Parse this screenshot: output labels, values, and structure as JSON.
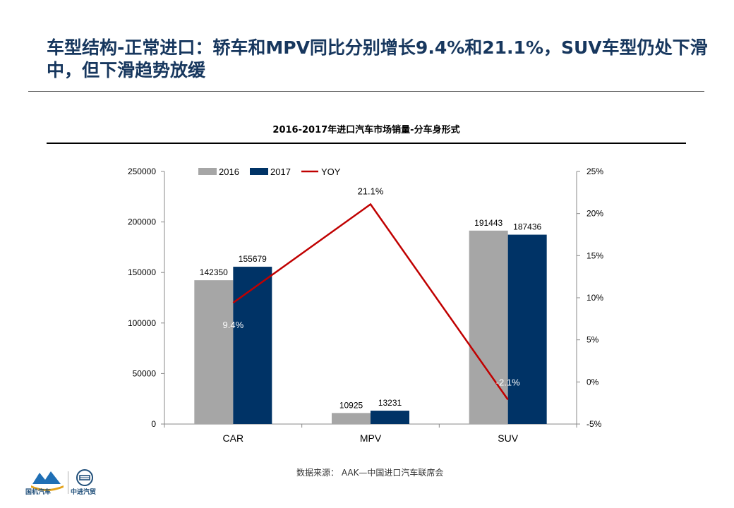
{
  "header": {
    "title": "车型结构-正常进口：轿车和MPV同比分别增长9.4%和21.1%，SUV车型仍处下滑中，但下滑趋势放缓"
  },
  "footer": {
    "source": "数据来源： AAK—中国进口汽车联席会",
    "logo_left_label": "国机汽车",
    "logo_right_label": "中进汽贸"
  },
  "chart_data": {
    "type": "bar",
    "title": "2016-2017年进口汽车市场销量-分车身形式",
    "categories": [
      "CAR",
      "MPV",
      "SUV"
    ],
    "series": [
      {
        "name": "2016",
        "type": "bar",
        "axis": "left",
        "color": "#a6a6a6",
        "values": [
          142350,
          10925,
          191443
        ]
      },
      {
        "name": "2017",
        "type": "bar",
        "axis": "left",
        "color": "#003366",
        "values": [
          155679,
          13231,
          187436
        ]
      },
      {
        "name": "YOY",
        "type": "line",
        "axis": "right",
        "color": "#c00000",
        "values": [
          9.4,
          21.1,
          -2.1
        ],
        "labels": [
          "9.4%",
          "21.1%",
          "-2.1%"
        ]
      }
    ],
    "y_left": {
      "min": 0,
      "max": 250000,
      "ticks": [
        0,
        50000,
        100000,
        150000,
        200000,
        250000
      ],
      "tick_labels": [
        "0",
        "50000",
        "100000",
        "150000",
        "200000",
        "250000"
      ]
    },
    "y_right": {
      "min": -5,
      "max": 25,
      "ticks": [
        -5,
        0,
        5,
        10,
        15,
        20,
        25
      ],
      "tick_labels": [
        "-5%",
        "0%",
        "5%",
        "10%",
        "15%",
        "20%",
        "25%"
      ]
    },
    "legend_position": "top",
    "grid": false
  }
}
